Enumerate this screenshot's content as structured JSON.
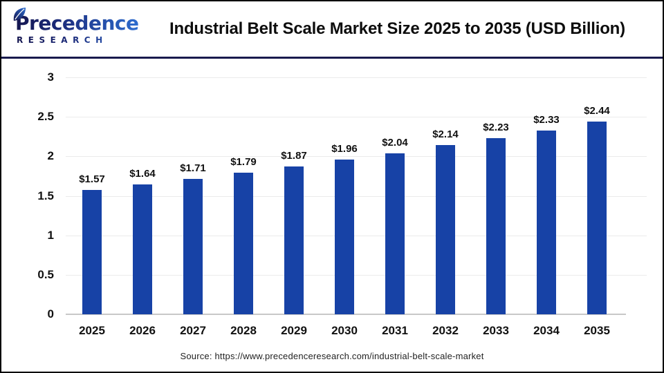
{
  "header": {
    "logo": {
      "name": "Precedence",
      "subtitle": "RESEARCH"
    }
  },
  "chart_data": {
    "type": "bar",
    "title": "Industrial Belt Scale Market Size 2025 to 2035 (USD Billion)",
    "categories": [
      "2025",
      "2026",
      "2027",
      "2028",
      "2029",
      "2030",
      "2031",
      "2032",
      "2033",
      "2034",
      "2035"
    ],
    "values": [
      1.57,
      1.64,
      1.71,
      1.79,
      1.87,
      1.96,
      2.04,
      2.14,
      2.23,
      2.33,
      2.44
    ],
    "value_labels": [
      "$1.57",
      "$1.64",
      "$1.71",
      "$1.79",
      "$1.87",
      "$1.96",
      "$2.04",
      "$2.14",
      "$2.23",
      "$2.33",
      "$2.44"
    ],
    "xlabel": "",
    "ylabel": "",
    "ylim": [
      0,
      3
    ],
    "yticks": [
      0,
      0.5,
      1,
      1.5,
      2,
      2.5,
      3
    ],
    "grid": true,
    "legend": false
  },
  "footer": {
    "source": "Source: https://www.precedenceresearch.com/industrial-belt-scale-market"
  },
  "colors": {
    "bar": "#1742a6",
    "divider": "#191a4d",
    "grid": "#ebebeb",
    "axis": "#c8c8c8",
    "logo_dark": "#14154e",
    "logo_blue": "#2e6fd2",
    "title_text": "#0d0d0d",
    "source_text": "#222222"
  }
}
